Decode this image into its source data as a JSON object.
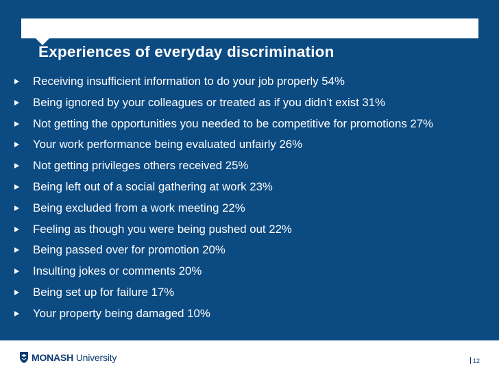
{
  "slide": {
    "title": "Experiences of everyday discrimination",
    "bullets": [
      "Receiving insufficient information to do your job properly 54%",
      "Being ignored by your colleagues or treated as if you didn’t exist 31%",
      "Not getting the opportunities you needed to be competitive for promotions 27%",
      "Your work performance being evaluated unfairly 26%",
      "Not getting privileges others received 25%",
      "Being left out of a social gathering at work 23%",
      "Being excluded from a work meeting 22%",
      "Feeling as though you were being pushed out 22%",
      "Being passed over for promotion 20%",
      "Insulting jokes or comments 20%",
      "Being set up for failure 17%",
      "Your property being damaged 10%"
    ]
  },
  "footer": {
    "logo_bold": "MONASH",
    "logo_light": " University",
    "page_number": "12"
  },
  "colors": {
    "panel": "#0c4a82",
    "text": "#ffffff",
    "brand": "#0c3b6e"
  },
  "icons": {
    "bullet": "triangle-bullet-icon",
    "logo": "monash-shield-icon"
  }
}
